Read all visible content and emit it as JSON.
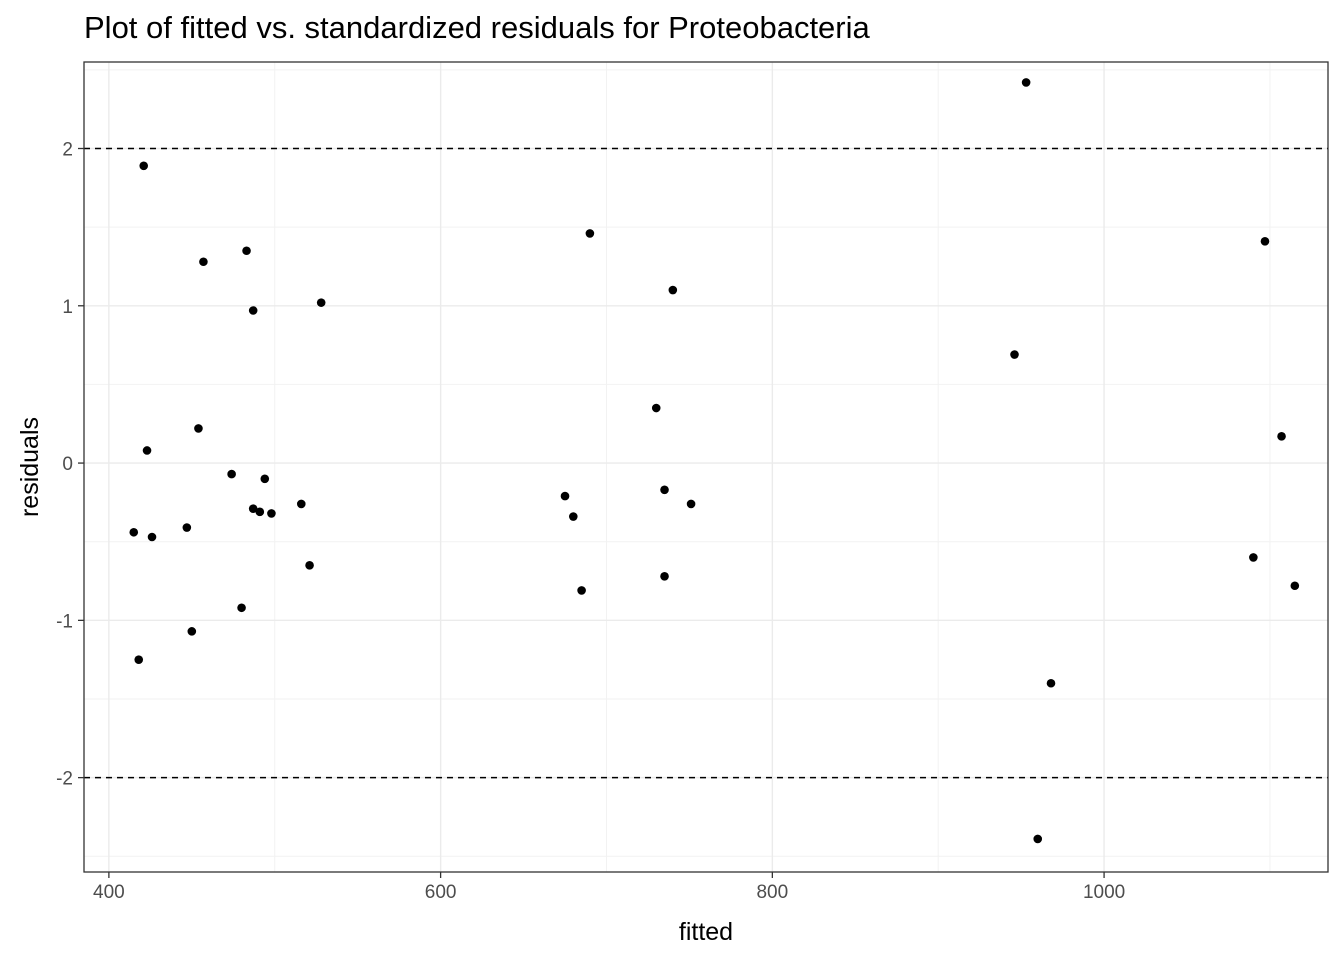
{
  "chart_data": {
    "type": "scatter",
    "title": "Plot of fitted vs. standardized residuals for Proteobacteria",
    "xlabel": "fitted",
    "ylabel": "residuals",
    "xlim": [
      385,
      1135
    ],
    "ylim": [
      -2.6,
      2.55
    ],
    "xticks": [
      400,
      600,
      800,
      1000
    ],
    "xtick_labels": [
      "400",
      "600",
      "800",
      "1000"
    ],
    "yticks": [
      2,
      1,
      0,
      -1,
      -2
    ],
    "ytick_labels": [
      "2",
      "1",
      "0",
      "-1",
      "-2"
    ],
    "grid": true,
    "reference_lines": [
      2,
      -2
    ],
    "points": [
      {
        "x": 421,
        "y": 1.89
      },
      {
        "x": 415,
        "y": -0.44
      },
      {
        "x": 418,
        "y": -1.25
      },
      {
        "x": 423,
        "y": 0.08
      },
      {
        "x": 426,
        "y": -0.47
      },
      {
        "x": 447,
        "y": -0.41
      },
      {
        "x": 450,
        "y": -1.07
      },
      {
        "x": 454,
        "y": 0.22
      },
      {
        "x": 457,
        "y": 1.28
      },
      {
        "x": 474,
        "y": -0.07
      },
      {
        "x": 480,
        "y": -0.92
      },
      {
        "x": 483,
        "y": 1.35
      },
      {
        "x": 487,
        "y": 0.97
      },
      {
        "x": 487,
        "y": -0.29
      },
      {
        "x": 491,
        "y": -0.31
      },
      {
        "x": 494,
        "y": -0.1
      },
      {
        "x": 498,
        "y": -0.32
      },
      {
        "x": 516,
        "y": -0.26
      },
      {
        "x": 521,
        "y": -0.65
      },
      {
        "x": 528,
        "y": 1.02
      },
      {
        "x": 675,
        "y": -0.21
      },
      {
        "x": 680,
        "y": -0.34
      },
      {
        "x": 685,
        "y": -0.81
      },
      {
        "x": 690,
        "y": 1.46
      },
      {
        "x": 730,
        "y": 0.35
      },
      {
        "x": 735,
        "y": -0.17
      },
      {
        "x": 735,
        "y": -0.72
      },
      {
        "x": 740,
        "y": 1.1
      },
      {
        "x": 751,
        "y": -0.26
      },
      {
        "x": 946,
        "y": 0.69
      },
      {
        "x": 953,
        "y": 2.42
      },
      {
        "x": 960,
        "y": -2.39
      },
      {
        "x": 968,
        "y": -1.4
      },
      {
        "x": 1090,
        "y": -0.6
      },
      {
        "x": 1097,
        "y": 1.41
      },
      {
        "x": 1107,
        "y": 0.17
      },
      {
        "x": 1115,
        "y": -0.78
      }
    ]
  }
}
